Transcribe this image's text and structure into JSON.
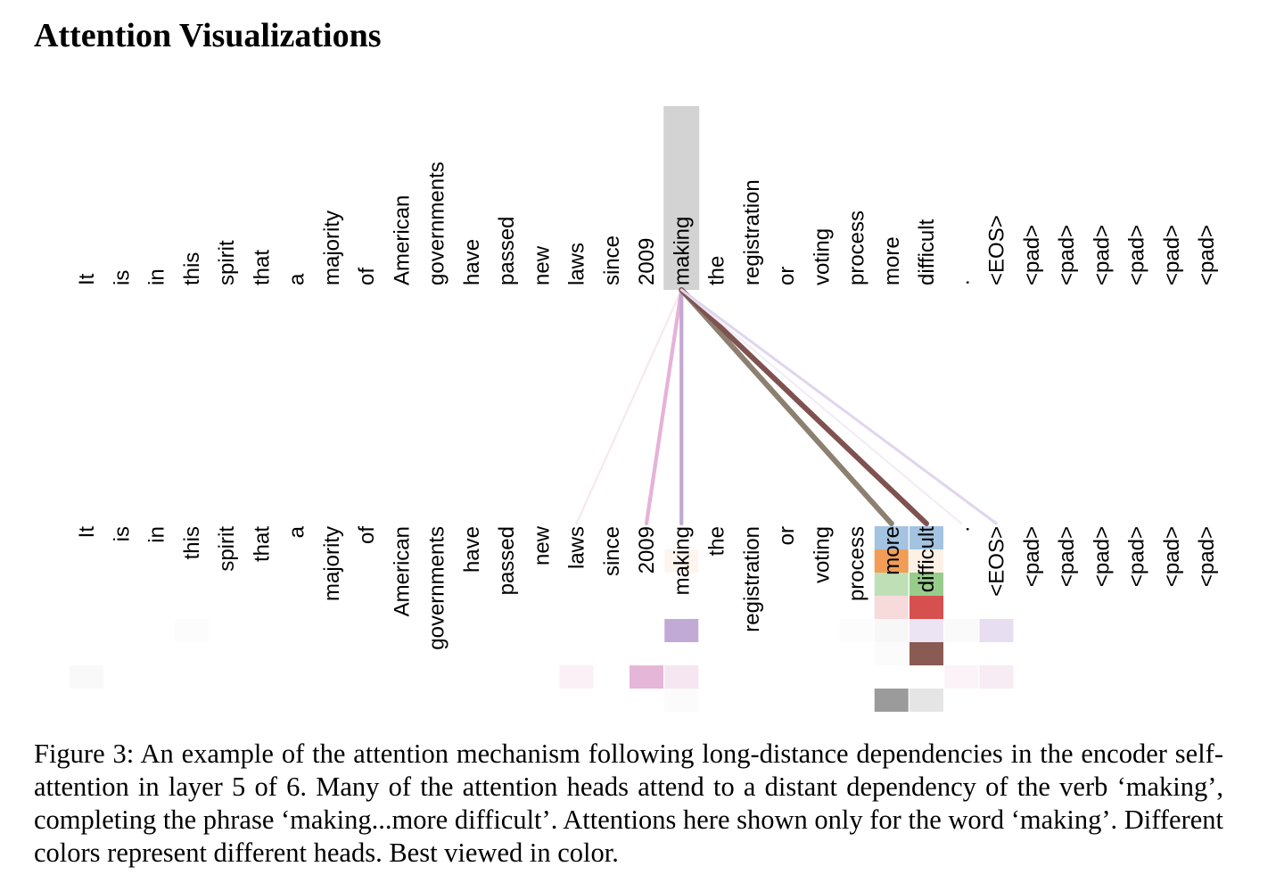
{
  "section_title": "Attention Visualizations",
  "tokens": [
    "It",
    "is",
    "in",
    "this",
    "spirit",
    "that",
    "a",
    "majority",
    "of",
    "American",
    "governments",
    "have",
    "passed",
    "new",
    "laws",
    "since",
    "2009",
    "making",
    "the",
    "registration",
    "or",
    "voting",
    "process",
    "more",
    "difficult",
    ".",
    "<EOS>",
    "<pad>",
    "<pad>",
    "<pad>",
    "<pad>",
    "<pad>",
    "<pad>"
  ],
  "query_token_index": 17,
  "highlight_color": "#d3d3d3",
  "attention_lines": [
    {
      "to": 14,
      "color": "#f7e8ef",
      "weight": 0.15
    },
    {
      "to": 16,
      "color": "#e6b2d8",
      "weight": 0.55
    },
    {
      "to": 17,
      "color": "#c2a8d0",
      "weight": 0.55
    },
    {
      "to": 23,
      "color": "#8c8070",
      "weight": 0.9
    },
    {
      "to": 24,
      "color": "#7f5250",
      "weight": 0.9
    },
    {
      "to": 25,
      "color": "#f3ecf6",
      "weight": 0.15
    },
    {
      "to": 26,
      "color": "#e0d5ee",
      "weight": 0.3
    }
  ],
  "head_cells": [
    {
      "col": 23,
      "row": 0,
      "color": "#a4c3e0"
    },
    {
      "col": 24,
      "row": 0,
      "color": "#a4c3e0"
    },
    {
      "col": 17,
      "row": 1,
      "color": "#fdf5ee"
    },
    {
      "col": 23,
      "row": 1,
      "color": "#f19d56"
    },
    {
      "col": 24,
      "row": 1,
      "color": "#fdf1e6"
    },
    {
      "col": 23,
      "row": 2,
      "color": "#bfe0b7"
    },
    {
      "col": 24,
      "row": 2,
      "color": "#98cc8c"
    },
    {
      "col": 23,
      "row": 3,
      "color": "#f6dadc"
    },
    {
      "col": 24,
      "row": 3,
      "color": "#d75050"
    },
    {
      "col": 3,
      "row": 4,
      "color": "#fcfcfc"
    },
    {
      "col": 17,
      "row": 4,
      "color": "#c2aad7"
    },
    {
      "col": 22,
      "row": 4,
      "color": "#fcfcfc"
    },
    {
      "col": 23,
      "row": 4,
      "color": "#f7f7f7"
    },
    {
      "col": 24,
      "row": 4,
      "color": "#ede4f3"
    },
    {
      "col": 25,
      "row": 4,
      "color": "#fafafa"
    },
    {
      "col": 26,
      "row": 4,
      "color": "#e7def2"
    },
    {
      "col": 23,
      "row": 5,
      "color": "#fbfbfb"
    },
    {
      "col": 24,
      "row": 5,
      "color": "#8a5b52"
    },
    {
      "col": 0,
      "row": 6,
      "color": "#f9f9f9"
    },
    {
      "col": 14,
      "row": 6,
      "color": "#faf0f6"
    },
    {
      "col": 16,
      "row": 6,
      "color": "#e6b6d8"
    },
    {
      "col": 17,
      "row": 6,
      "color": "#f5e6f1"
    },
    {
      "col": 25,
      "row": 6,
      "color": "#fbf3f8"
    },
    {
      "col": 26,
      "row": 6,
      "color": "#f7ebf4"
    },
    {
      "col": 17,
      "row": 7,
      "color": "#fbfbfb"
    },
    {
      "col": 23,
      "row": 7,
      "color": "#9b9b9b"
    },
    {
      "col": 24,
      "row": 7,
      "color": "#e5e5e5"
    }
  ],
  "caption": "Figure 3:  An example of the attention mechanism following long-distance dependencies in the encoder self-attention in layer 5 of 6. Many of the attention heads attend to a distant dependency of the verb ‘making’, completing the phrase ‘making...more difficult’. Attentions here shown only for the word ‘making’. Different colors represent different heads. Best viewed in color."
}
